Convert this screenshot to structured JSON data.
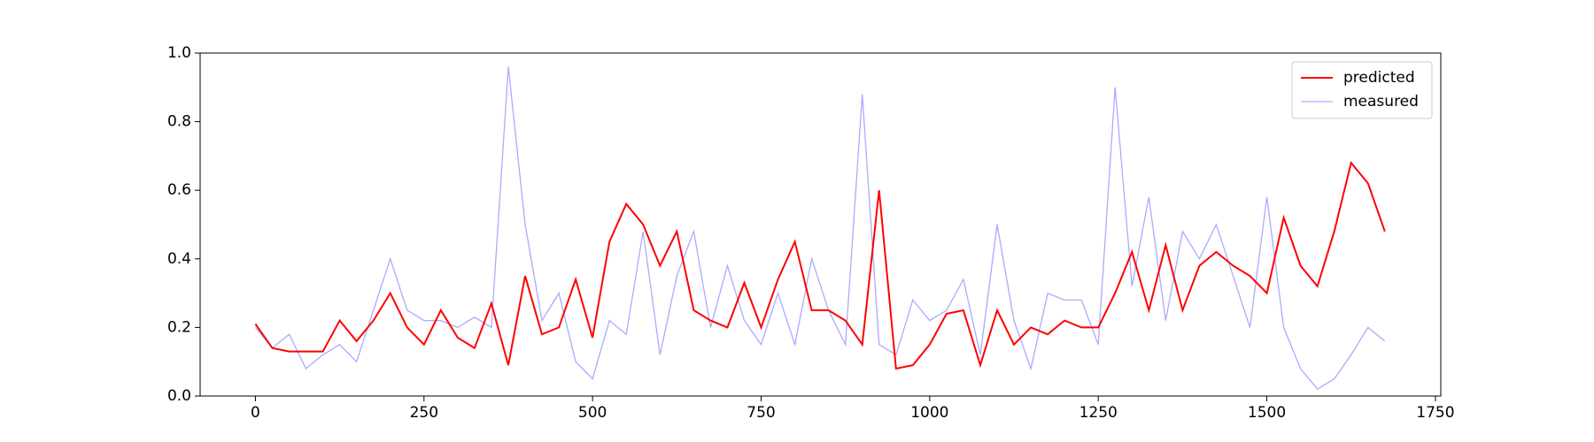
{
  "chart_data": {
    "type": "line",
    "x": [
      0,
      25,
      50,
      75,
      100,
      125,
      150,
      175,
      200,
      225,
      250,
      275,
      300,
      325,
      350,
      375,
      400,
      425,
      450,
      475,
      500,
      525,
      550,
      575,
      600,
      625,
      650,
      675,
      700,
      725,
      750,
      775,
      800,
      825,
      850,
      875,
      900,
      925,
      950,
      975,
      1000,
      1025,
      1050,
      1075,
      1100,
      1125,
      1150,
      1175,
      1200,
      1225,
      1250,
      1275,
      1300,
      1325,
      1350,
      1375,
      1400,
      1425,
      1450,
      1475,
      1500,
      1525,
      1550,
      1575,
      1600,
      1625,
      1650,
      1675
    ],
    "series": [
      {
        "name": "predicted",
        "color": "#ff0000",
        "values": [
          0.21,
          0.14,
          0.13,
          0.13,
          0.13,
          0.22,
          0.16,
          0.22,
          0.3,
          0.2,
          0.15,
          0.25,
          0.17,
          0.14,
          0.27,
          0.09,
          0.35,
          0.18,
          0.2,
          0.34,
          0.17,
          0.45,
          0.56,
          0.5,
          0.38,
          0.48,
          0.25,
          0.22,
          0.2,
          0.33,
          0.2,
          0.34,
          0.45,
          0.25,
          0.25,
          0.22,
          0.15,
          0.6,
          0.08,
          0.09,
          0.15,
          0.24,
          0.25,
          0.09,
          0.25,
          0.15,
          0.2,
          0.18,
          0.22,
          0.2,
          0.2,
          0.3,
          0.42,
          0.25,
          0.44,
          0.25,
          0.38,
          0.42,
          0.38,
          0.35,
          0.3,
          0.52,
          0.38,
          0.32,
          0.48,
          0.68,
          0.62,
          0.48
        ]
      },
      {
        "name": "measured",
        "color": "#aaaaff",
        "values": [
          0.2,
          0.14,
          0.18,
          0.08,
          0.12,
          0.15,
          0.1,
          0.25,
          0.4,
          0.25,
          0.22,
          0.22,
          0.2,
          0.23,
          0.2,
          0.96,
          0.5,
          0.22,
          0.3,
          0.1,
          0.05,
          0.22,
          0.18,
          0.48,
          0.12,
          0.35,
          0.48,
          0.2,
          0.38,
          0.22,
          0.15,
          0.3,
          0.15,
          0.4,
          0.25,
          0.15,
          0.88,
          0.15,
          0.12,
          0.28,
          0.22,
          0.25,
          0.34,
          0.12,
          0.5,
          0.22,
          0.08,
          0.3,
          0.28,
          0.28,
          0.15,
          0.9,
          0.32,
          0.58,
          0.22,
          0.48,
          0.4,
          0.5,
          0.35,
          0.2,
          0.58,
          0.2,
          0.08,
          0.02,
          0.05,
          0.12,
          0.2,
          0.16
        ]
      }
    ],
    "xlim": [
      -82,
      1758
    ],
    "xticks": [
      0,
      250,
      500,
      750,
      1000,
      1250,
      1500,
      1750
    ],
    "ylim": [
      0,
      1
    ],
    "yticks": [
      {
        "value": 0,
        "label": "0.0"
      },
      {
        "value": 0.2,
        "label": "0.2"
      },
      {
        "value": 0.4,
        "label": "0.4"
      },
      {
        "value": 0.6,
        "label": "0.6"
      },
      {
        "value": 0.8,
        "label": "0.8"
      },
      {
        "value": 1,
        "label": "1.0"
      }
    ],
    "legend": "upper right"
  }
}
